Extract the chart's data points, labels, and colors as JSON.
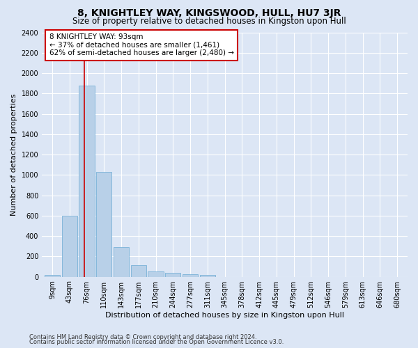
{
  "title": "8, KNIGHTLEY WAY, KINGSWOOD, HULL, HU7 3JR",
  "subtitle": "Size of property relative to detached houses in Kingston upon Hull",
  "xlabel": "Distribution of detached houses by size in Kingston upon Hull",
  "ylabel": "Number of detached properties",
  "footnote1": "Contains HM Land Registry data © Crown copyright and database right 2024.",
  "footnote2": "Contains public sector information licensed under the Open Government Licence v3.0.",
  "bin_labels": [
    "9sqm",
    "43sqm",
    "76sqm",
    "110sqm",
    "143sqm",
    "177sqm",
    "210sqm",
    "244sqm",
    "277sqm",
    "311sqm",
    "345sqm",
    "378sqm",
    "412sqm",
    "445sqm",
    "479sqm",
    "512sqm",
    "546sqm",
    "579sqm",
    "613sqm",
    "646sqm",
    "680sqm"
  ],
  "bar_values": [
    20,
    600,
    1880,
    1030,
    290,
    110,
    50,
    35,
    25,
    15,
    0,
    0,
    0,
    0,
    0,
    0,
    0,
    0,
    0,
    0,
    0
  ],
  "bar_color": "#b8d0e8",
  "bar_edge_color": "#6aaad4",
  "annotation_line1": "8 KNIGHTLEY WAY: 93sqm",
  "annotation_line2": "← 37% of detached houses are smaller (1,461)",
  "annotation_line3": "62% of semi-detached houses are larger (2,480) →",
  "annotation_box_color": "#ffffff",
  "annotation_box_edge_color": "#cc0000",
  "vline_x": 1.87,
  "vline_color": "#cc0000",
  "ylim": [
    0,
    2400
  ],
  "yticks": [
    0,
    200,
    400,
    600,
    800,
    1000,
    1200,
    1400,
    1600,
    1800,
    2000,
    2200,
    2400
  ],
  "bg_color": "#dce6f5",
  "plot_bg_color": "#dce6f5",
  "grid_color": "#ffffff",
  "title_fontsize": 10,
  "subtitle_fontsize": 8.5,
  "xlabel_fontsize": 8,
  "ylabel_fontsize": 8,
  "tick_fontsize": 7,
  "annotation_fontsize": 7.5,
  "footnote_fontsize": 6
}
